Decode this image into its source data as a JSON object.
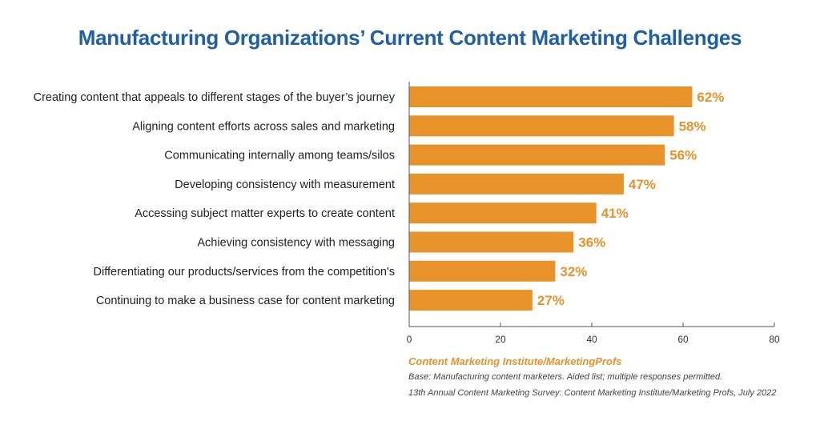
{
  "chart_data": {
    "type": "bar",
    "orientation": "horizontal",
    "title": "Manufacturing Organizations’ Current Content Marketing Challenges",
    "categories": [
      "Creating content that appeals to different stages of the buyer’s journey",
      "Aligning content efforts across sales and marketing",
      "Communicating internally among teams/silos",
      "Developing consistency with measurement",
      "Accessing subject matter experts to create content",
      "Achieving consistency with messaging",
      "Differentiating our products/services from the competition's",
      "Continuing to make a business case for content marketing"
    ],
    "values": [
      62,
      58,
      56,
      47,
      41,
      36,
      32,
      27
    ],
    "value_suffix": "%",
    "xlim": [
      0,
      80
    ],
    "xticks": [
      0,
      20,
      40,
      60,
      80
    ],
    "xlabel": "",
    "ylabel": "",
    "grid": false,
    "bar_color": "#e8922a"
  },
  "footer": {
    "source": "Content Marketing Institute/MarketingProfs",
    "note1": "Base: Manufacturing content marketers. Aided list; multiple responses permitted.",
    "note2": "13th Annual Content Marketing Survey: Content Marketing Institute/Marketing Profs, July 2022"
  }
}
